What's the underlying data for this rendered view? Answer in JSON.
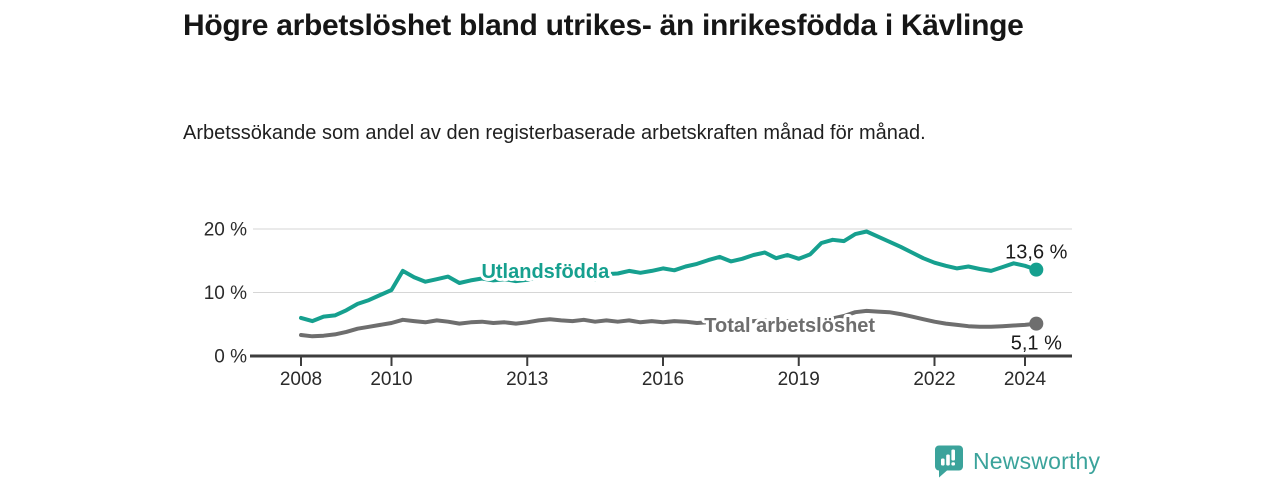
{
  "header": {
    "title": "Högre arbetslöshet bland utrikes- än inrikesfödda i Kävlinge",
    "subtitle": "Arbetssökande som andel av den registerbaserade arbetskraften månad för månad."
  },
  "chart_data": {
    "type": "line",
    "title": "Högre arbetslöshet bland utrikes- än inrikesfödda i Kävlinge",
    "subtitle": "Arbetssökande som andel av den registerbaserade arbetskraften månad för månad.",
    "xlabel": "",
    "ylabel": "",
    "grid": "horizontal-only",
    "legend": "inline-labels-on-lines",
    "xlim": [
      2006.85,
      2025.25
    ],
    "ylim": [
      0,
      21.5
    ],
    "x_ticks": [
      2008,
      2010,
      2013,
      2016,
      2019,
      2022,
      2024
    ],
    "x_tick_labels": [
      "2008",
      "2010",
      "2013",
      "2016",
      "2019",
      "2022",
      "2024"
    ],
    "y_ticks": [
      0,
      10,
      20
    ],
    "y_tick_labels": [
      "0 %",
      "10 %",
      "20 %"
    ],
    "x": [
      2008.0,
      2008.25,
      2008.5,
      2008.75,
      2009.0,
      2009.25,
      2009.5,
      2009.75,
      2010.0,
      2010.25,
      2010.5,
      2010.75,
      2011.0,
      2011.25,
      2011.5,
      2011.75,
      2012.0,
      2012.25,
      2012.5,
      2012.75,
      2013.0,
      2013.25,
      2013.5,
      2013.75,
      2014.0,
      2014.25,
      2014.5,
      2014.75,
      2015.0,
      2015.25,
      2015.5,
      2015.75,
      2016.0,
      2016.25,
      2016.5,
      2016.75,
      2017.0,
      2017.25,
      2017.5,
      2017.75,
      2018.0,
      2018.25,
      2018.5,
      2018.75,
      2019.0,
      2019.25,
      2019.5,
      2019.75,
      2020.0,
      2020.25,
      2020.5,
      2020.75,
      2021.0,
      2021.25,
      2021.5,
      2021.75,
      2022.0,
      2022.25,
      2022.5,
      2022.75,
      2023.0,
      2023.25,
      2023.5,
      2023.75,
      2024.0,
      2024.25
    ],
    "series": [
      {
        "name": "Utlandsfödda",
        "color": "#16a08f",
        "end_label": "13,6 %",
        "end_value": 13.6,
        "label_pos": {
          "x": 2013.4,
          "y": 13.2
        },
        "values": [
          6.0,
          5.5,
          6.2,
          6.4,
          7.2,
          8.2,
          8.8,
          9.6,
          10.4,
          13.4,
          12.4,
          11.7,
          12.1,
          12.5,
          11.5,
          11.9,
          12.2,
          11.9,
          12.1,
          11.8,
          12.0,
          12.5,
          13.0,
          12.6,
          12.9,
          13.4,
          12.1,
          12.9,
          13.0,
          13.4,
          13.1,
          13.4,
          13.8,
          13.5,
          14.1,
          14.5,
          15.1,
          15.6,
          14.9,
          15.3,
          15.9,
          16.3,
          15.4,
          15.9,
          15.3,
          16.0,
          17.8,
          18.3,
          18.1,
          19.2,
          19.6,
          18.8,
          18.0,
          17.2,
          16.3,
          15.4,
          14.7,
          14.2,
          13.8,
          14.1,
          13.7,
          13.4,
          14.0,
          14.6,
          14.2,
          13.6
        ]
      },
      {
        "name": "Total arbetslöshet",
        "color": "#6e6e6e",
        "end_label": "5,1 %",
        "end_value": 5.1,
        "label_pos": {
          "x": 2018.8,
          "y": 4.7
        },
        "values": [
          3.3,
          3.1,
          3.2,
          3.4,
          3.8,
          4.3,
          4.6,
          4.9,
          5.2,
          5.7,
          5.5,
          5.3,
          5.6,
          5.4,
          5.1,
          5.3,
          5.4,
          5.2,
          5.3,
          5.1,
          5.3,
          5.6,
          5.8,
          5.6,
          5.5,
          5.7,
          5.4,
          5.6,
          5.4,
          5.6,
          5.3,
          5.5,
          5.3,
          5.5,
          5.4,
          5.2,
          5.3,
          5.5,
          5.3,
          5.4,
          5.5,
          5.6,
          5.4,
          5.5,
          5.3,
          5.5,
          5.6,
          5.9,
          6.3,
          6.9,
          7.1,
          7.0,
          6.9,
          6.6,
          6.2,
          5.8,
          5.4,
          5.1,
          4.9,
          4.7,
          4.6,
          4.6,
          4.7,
          4.8,
          4.9,
          5.1
        ]
      }
    ]
  },
  "footer": {
    "brand": "Newsworthy"
  },
  "colors": {
    "accent_teal": "#16a08f",
    "neutral_gray": "#6e6e6e",
    "logo_teal": "#3ba39b",
    "grid": "#d6d6d6",
    "axis": "#3d3d3d",
    "tick_text": "#2b2b2b",
    "value_text": "#1a1a1a",
    "background": "#ffffff"
  }
}
